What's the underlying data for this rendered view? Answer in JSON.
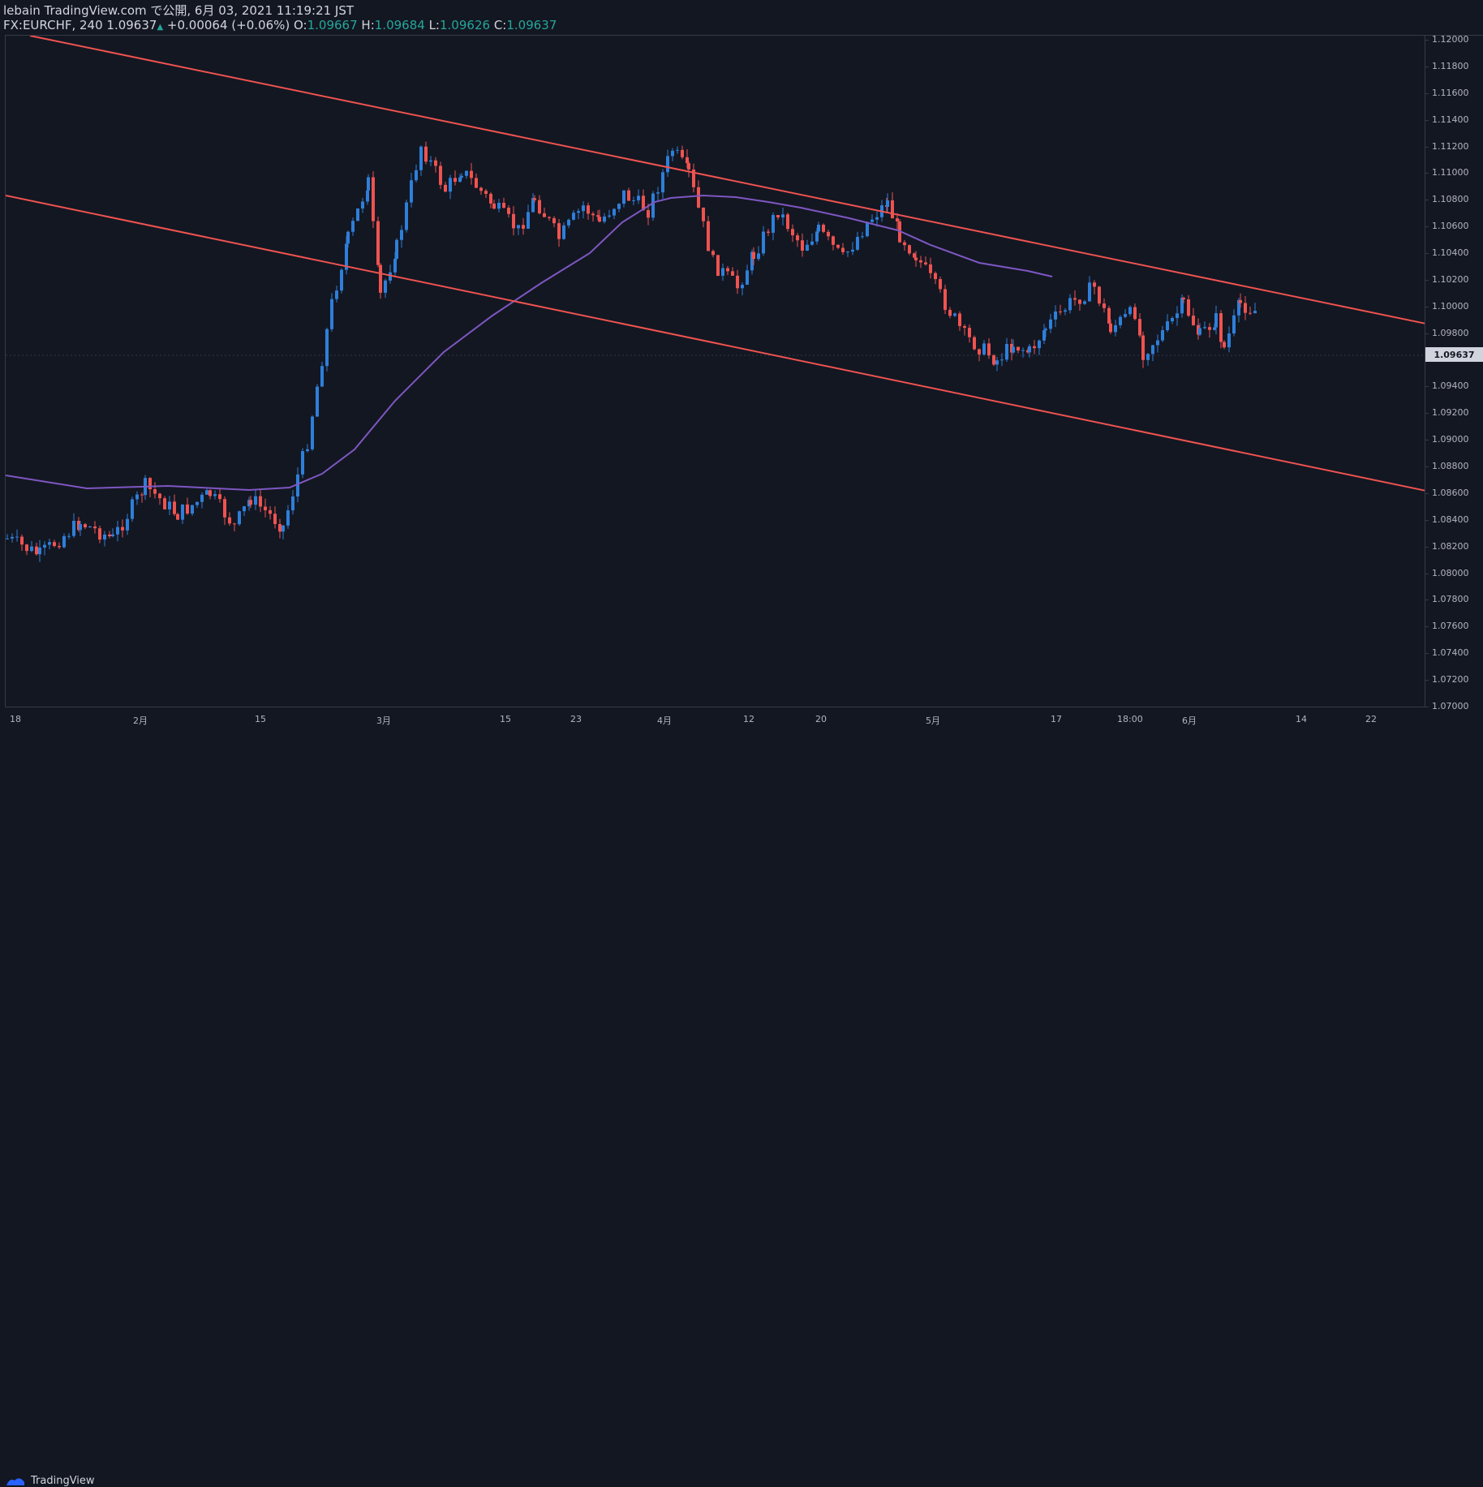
{
  "header": {
    "line1": "lebain TradingView.com で公開, 6月 03, 2021 11:19:21 JST",
    "symbol_line_prefix": "FX:EURCHF, 240 1.09637",
    "change_arrow": "▲",
    "change_text": "+0.00064 (+0.06%)",
    "o_label": "O:",
    "o_value": "1.09667",
    "h_label": "H:",
    "h_value": "1.09684",
    "l_label": "L:",
    "l_value": "1.09626",
    "c_label": "C:",
    "c_value": "1.09637"
  },
  "y_axis": {
    "ticks": [
      "1.12000",
      "1.11800",
      "1.11600",
      "1.11400",
      "1.11200",
      "1.11000",
      "1.10800",
      "1.10600",
      "1.10400",
      "1.10200",
      "1.10000",
      "1.09800",
      "1.09400",
      "1.09200",
      "1.09000",
      "1.08800",
      "1.08600",
      "1.08400",
      "1.08200",
      "1.08000",
      "1.07800",
      "1.07600",
      "1.07400",
      "1.07200",
      "1.07000"
    ],
    "ymin": 1.07,
    "ymax": 1.12,
    "last_price": "1.09637"
  },
  "x_axis": {
    "ticks": [
      "18",
      "2月",
      "15",
      "3月",
      "15",
      "23",
      "4月",
      "12",
      "20",
      "5月",
      "17",
      "18:00",
      "6月",
      "14",
      "22"
    ]
  },
  "footer": {
    "brand": "TradingView"
  },
  "colors": {
    "bg": "#131722",
    "up": "#2e7fd9",
    "down": "#ef5350",
    "channel": "#ef5350",
    "ma": "#7e57c2"
  }
}
